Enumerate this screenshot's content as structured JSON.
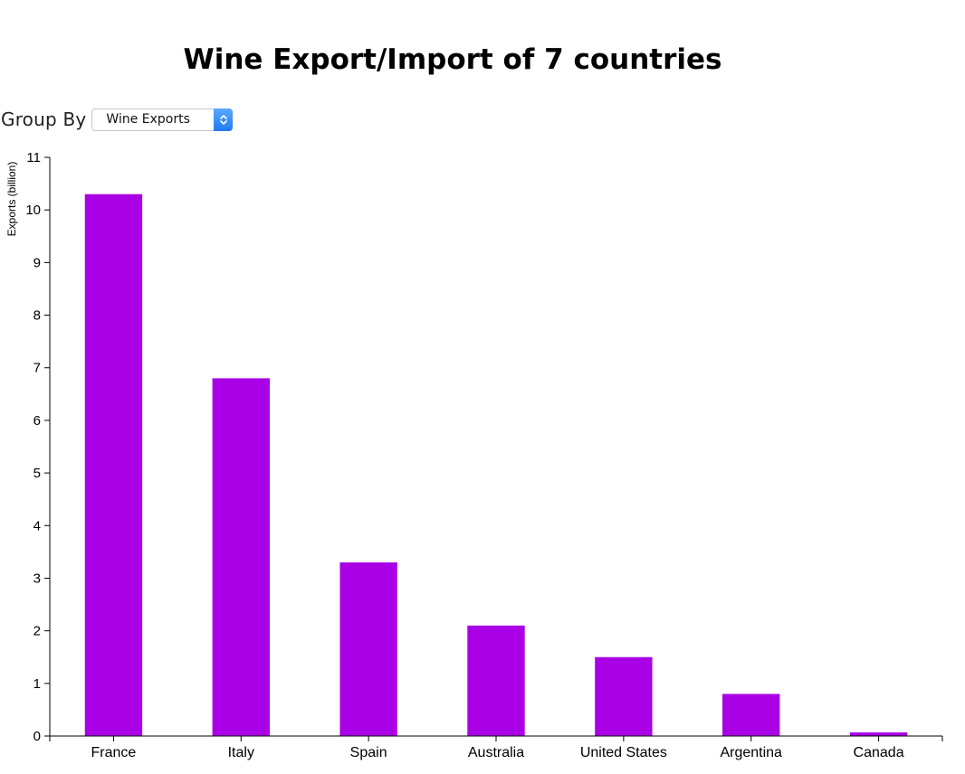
{
  "page": {
    "title": "Wine Export/Import of 7 countries"
  },
  "controls": {
    "group_by_label": "Group By",
    "group_by_selected": "Wine Exports",
    "accent_color": "#2b86f7"
  },
  "chart_data": {
    "type": "bar",
    "title": "Wine Export/Import of 7 countries",
    "xlabel": "",
    "ylabel": "Exports (billion)",
    "categories": [
      "France",
      "Italy",
      "Spain",
      "Australia",
      "United States",
      "Argentina",
      "Canada"
    ],
    "values": [
      10.3,
      6.8,
      3.3,
      2.1,
      1.5,
      0.8,
      0.07
    ],
    "ylim": [
      0,
      11
    ],
    "yticks": [
      0,
      1,
      2,
      3,
      4,
      5,
      6,
      7,
      8,
      9,
      10,
      11
    ],
    "bar_color": "#aa00e6",
    "grid": false,
    "legend": "none"
  }
}
